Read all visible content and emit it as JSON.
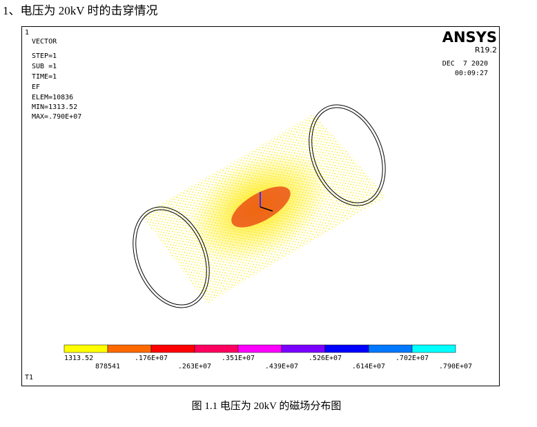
{
  "heading": "1、电压为 20kV 时的击穿情况",
  "figure": {
    "window_number": "1",
    "info": [
      "VECTOR",
      "STEP=1",
      "SUB =1",
      "TIME=1",
      "EF",
      "ELEM=10836",
      "MIN=1313.52",
      "MAX=.790E+07"
    ],
    "brand": "ANSYS",
    "version": "R19.2",
    "date": "DEC  7 2020",
    "time": "00:09:27",
    "legend": {
      "colors": [
        "#ffff00",
        "#ff6a00",
        "#ff0000",
        "#ff0060",
        "#ff00ff",
        "#7a00ff",
        "#0000ff",
        "#0078ff",
        "#00ffff"
      ],
      "labels": [
        "1313.52",
        "878541",
        ".176E+07",
        ".263E+07",
        ".351E+07",
        ".439E+07",
        ".526E+07",
        ".614E+07",
        ".702E+07",
        ".790E+07"
      ]
    },
    "window_label": "T1"
  },
  "caption": "图 1.1 电压为 20kV 的磁场分布图"
}
